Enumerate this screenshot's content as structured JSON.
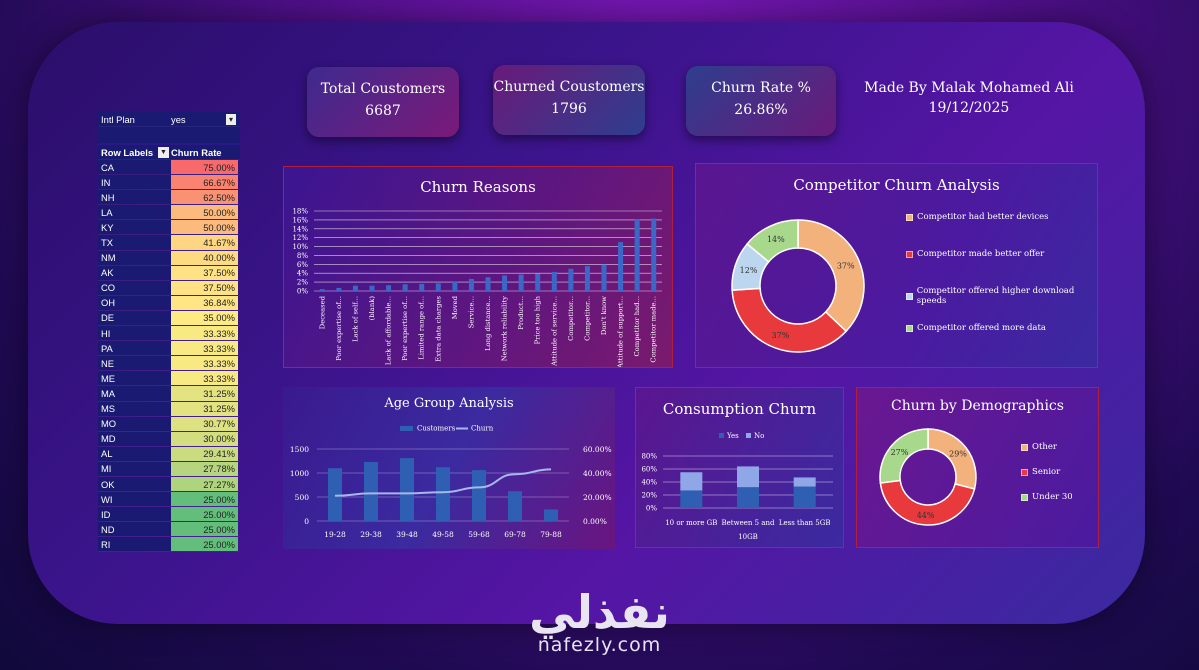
{
  "kpis": {
    "total_label": "Total Coustomers",
    "total_value": "6687",
    "churned_label": "Churned Coustomers",
    "churned_value": "1796",
    "rate_label": "Churn Rate %",
    "rate_value": "26.86%",
    "author": "Made By Malak Mohamed Ali",
    "date": "19/12/2025"
  },
  "pivot": {
    "filter_label": "Intl Plan",
    "filter_value": "yes",
    "col1": "Row Labels",
    "col2": "Churn Rate",
    "rows": [
      {
        "state": "CA",
        "rate": "75.00%",
        "color": "#f8696b"
      },
      {
        "state": "IN",
        "rate": "66.67%",
        "color": "#f98370"
      },
      {
        "state": "NH",
        "rate": "62.50%",
        "color": "#f99173"
      },
      {
        "state": "LA",
        "rate": "50.00%",
        "color": "#fcbb7c"
      },
      {
        "state": "KY",
        "rate": "50.00%",
        "color": "#fcbb7c"
      },
      {
        "state": "TX",
        "rate": "41.67%",
        "color": "#fed580"
      },
      {
        "state": "NM",
        "rate": "40.00%",
        "color": "#feda81"
      },
      {
        "state": "AK",
        "rate": "37.50%",
        "color": "#ffe283"
      },
      {
        "state": "CO",
        "rate": "37.50%",
        "color": "#ffe283"
      },
      {
        "state": "OH",
        "rate": "36.84%",
        "color": "#ffe583"
      },
      {
        "state": "DE",
        "rate": "35.00%",
        "color": "#ffeb84"
      },
      {
        "state": "HI",
        "rate": "33.33%",
        "color": "#f9e983"
      },
      {
        "state": "PA",
        "rate": "33.33%",
        "color": "#f9e983"
      },
      {
        "state": "NE",
        "rate": "33.33%",
        "color": "#f9e983"
      },
      {
        "state": "ME",
        "rate": "33.33%",
        "color": "#f9e983"
      },
      {
        "state": "MA",
        "rate": "31.25%",
        "color": "#e3e382"
      },
      {
        "state": "MS",
        "rate": "31.25%",
        "color": "#e3e382"
      },
      {
        "state": "MO",
        "rate": "30.77%",
        "color": "#dde181"
      },
      {
        "state": "MD",
        "rate": "30.00%",
        "color": "#d3de80"
      },
      {
        "state": "AL",
        "rate": "29.41%",
        "color": "#cbdc80"
      },
      {
        "state": "MI",
        "rate": "27.78%",
        "color": "#b5d67e"
      },
      {
        "state": "OK",
        "rate": "27.27%",
        "color": "#aed47e"
      },
      {
        "state": "WI",
        "rate": "25.00%",
        "color": "#63be7b"
      },
      {
        "state": "ID",
        "rate": "25.00%",
        "color": "#63be7b"
      },
      {
        "state": "ND",
        "rate": "25.00%",
        "color": "#63be7b"
      },
      {
        "state": "RI",
        "rate": "25.00%",
        "color": "#63be7b"
      }
    ]
  },
  "titles": {
    "reasons": "Churn Reasons",
    "competitor": "Competitor Churn Analysis",
    "age": "Age Group Analysis",
    "consumption": "Consumption Churn",
    "demographics": "Churn by Demographics"
  },
  "chart_data": [
    {
      "id": "reasons",
      "type": "bar",
      "title": "Churn Reasons",
      "ylim": [
        0,
        0.18
      ],
      "yticks": [
        "0%",
        "2%",
        "4%",
        "6%",
        "8%",
        "10%",
        "12%",
        "14%",
        "16%",
        "18%"
      ],
      "categories": [
        "Deceased",
        "Poor expertise of...",
        "Lack of self...",
        "(blank)",
        "Lack of affordable...",
        "Poor expertise of...",
        "Limited range of...",
        "Extra data charges",
        "Moved",
        "Service...",
        "Long distance...",
        "Network reliability",
        "Product...",
        "Price too high",
        "Attitude of service...",
        "Competitor...",
        "Competitor...",
        "Don't know",
        "Attitude of support...",
        "Competitor had...",
        "Competitor made..."
      ],
      "values": [
        0.004,
        0.007,
        0.012,
        0.012,
        0.013,
        0.015,
        0.016,
        0.017,
        0.022,
        0.027,
        0.031,
        0.035,
        0.037,
        0.039,
        0.043,
        0.05,
        0.056,
        0.06,
        0.11,
        0.162,
        0.163
      ]
    },
    {
      "id": "competitor",
      "type": "pie",
      "title": "Competitor Churn Analysis",
      "labels": [
        "Competitor had better devices",
        "Competitor made better offer",
        "Competitor offered higher download speeds",
        "Competitor offered more data"
      ],
      "values": [
        37,
        37,
        12,
        14
      ],
      "colors": [
        "#f3b27c",
        "#e8393c",
        "#bcd6ef",
        "#a8d88c"
      ]
    },
    {
      "id": "age",
      "type": "bar",
      "title": "Age Group Analysis",
      "categories": [
        "19-28",
        "29-38",
        "39-48",
        "49-58",
        "59-68",
        "69-78",
        "79-88"
      ],
      "series": [
        {
          "name": "Customers",
          "values": [
            1100,
            1230,
            1310,
            1120,
            1060,
            620,
            240
          ]
        },
        {
          "name": "Churn",
          "values": [
            0.21,
            0.23,
            0.23,
            0.24,
            0.28,
            0.39,
            0.43
          ]
        }
      ],
      "yticks_left": [
        "0",
        "500",
        "1000",
        "1500"
      ],
      "ylim_left": [
        0,
        1500
      ],
      "yticks_right": [
        "0.00%",
        "20.00%",
        "40.00%",
        "60.00%"
      ],
      "ylim_right": [
        0,
        0.6
      ]
    },
    {
      "id": "consumption",
      "type": "bar",
      "title": "Consumption Churn",
      "categories": [
        "10 or more GB",
        "Between 5 and 10GB",
        "Less than 5GB"
      ],
      "xlabels": [
        "10 or more GB",
        "Between 5 and",
        "Less than 5GB"
      ],
      "xlabel_extra": "10GB",
      "series": [
        {
          "name": "Yes",
          "values": [
            0.27,
            0.32,
            0.33
          ]
        },
        {
          "name": "No",
          "values": [
            0.28,
            0.32,
            0.14
          ]
        }
      ],
      "yticks": [
        "0%",
        "20%",
        "40%",
        "60%",
        "80%"
      ],
      "ylim": [
        0,
        0.8
      ]
    },
    {
      "id": "demographics",
      "type": "pie",
      "title": "Churn by Demographics",
      "labels": [
        "Other",
        "Senior",
        "Under 30"
      ],
      "values": [
        29,
        44,
        27
      ],
      "colors": [
        "#f3b27c",
        "#e8393c",
        "#a8d88c"
      ]
    }
  ],
  "watermark": {
    "arabic": "نفذلي",
    "latin": "nafezly.com"
  }
}
